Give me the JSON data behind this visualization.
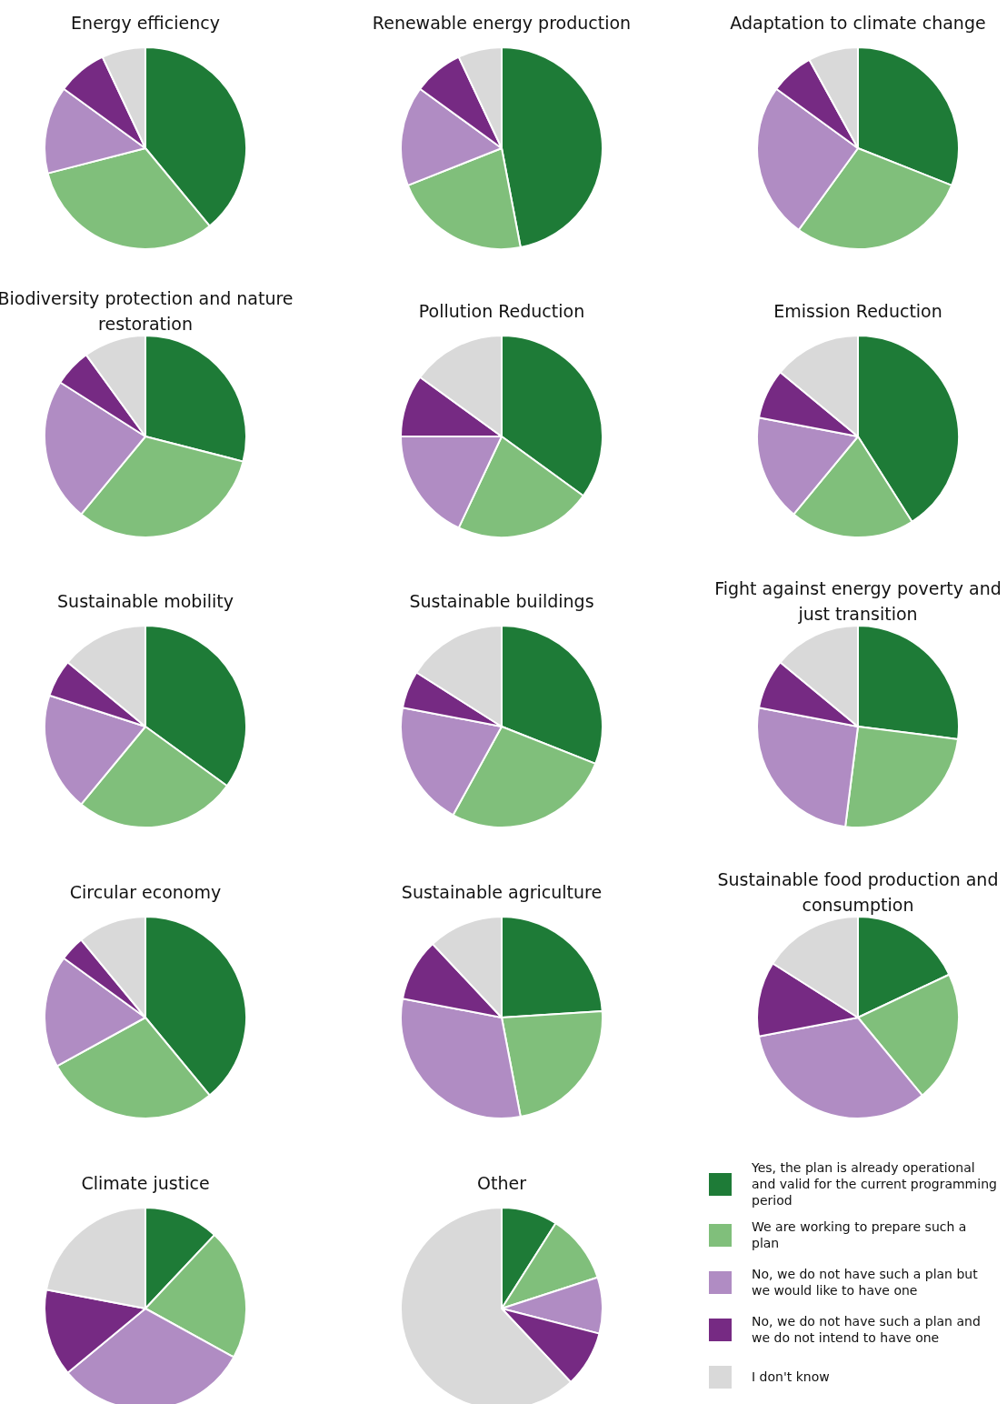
{
  "chart_data": [
    {
      "type": "pie",
      "title": "Energy efficiency",
      "categories": [
        null,
        null,
        null,
        null,
        null
      ],
      "values": [
        39,
        32,
        14,
        8,
        7
      ],
      "colors": [
        "#1e7b37",
        "#80bf7b",
        "#b08cc3",
        "#762a83",
        "#d9d9d9"
      ]
    },
    {
      "type": "pie",
      "title": "Renewable energy production",
      "categories": [
        null,
        null,
        null,
        null,
        null
      ],
      "values": [
        47,
        22,
        16,
        8,
        7
      ],
      "colors": [
        "#1e7b37",
        "#80bf7b",
        "#b08cc3",
        "#762a83",
        "#d9d9d9"
      ]
    },
    {
      "type": "pie",
      "title": "Adaptation to climate change",
      "categories": [
        null,
        null,
        null,
        null,
        null
      ],
      "values": [
        31,
        29,
        25,
        7,
        8
      ],
      "colors": [
        "#1e7b37",
        "#80bf7b",
        "#b08cc3",
        "#762a83",
        "#d9d9d9"
      ]
    },
    {
      "type": "pie",
      "title": "Biodiversity protection and nature restoration",
      "categories": [
        null,
        null,
        null,
        null,
        null
      ],
      "values": [
        29,
        32,
        23,
        6,
        10
      ],
      "colors": [
        "#1e7b37",
        "#80bf7b",
        "#b08cc3",
        "#762a83",
        "#d9d9d9"
      ]
    },
    {
      "type": "pie",
      "title": "Pollution Reduction",
      "categories": [
        null,
        null,
        null,
        null,
        null
      ],
      "values": [
        35,
        22,
        18,
        10,
        15
      ],
      "colors": [
        "#1e7b37",
        "#80bf7b",
        "#b08cc3",
        "#762a83",
        "#d9d9d9"
      ]
    },
    {
      "type": "pie",
      "title": "Emission Reduction",
      "categories": [
        null,
        null,
        null,
        null,
        null
      ],
      "values": [
        41,
        20,
        17,
        8,
        14
      ],
      "colors": [
        "#1e7b37",
        "#80bf7b",
        "#b08cc3",
        "#762a83",
        "#d9d9d9"
      ]
    },
    {
      "type": "pie",
      "title": "Sustainable mobility",
      "categories": [
        null,
        null,
        null,
        null,
        null
      ],
      "values": [
        35,
        26,
        19,
        6,
        14
      ],
      "colors": [
        "#1e7b37",
        "#80bf7b",
        "#b08cc3",
        "#762a83",
        "#d9d9d9"
      ]
    },
    {
      "type": "pie",
      "title": "Sustainable buildings",
      "categories": [
        null,
        null,
        null,
        null,
        null
      ],
      "values": [
        31,
        27,
        20,
        6,
        16
      ],
      "colors": [
        "#1e7b37",
        "#80bf7b",
        "#b08cc3",
        "#762a83",
        "#d9d9d9"
      ]
    },
    {
      "type": "pie",
      "title": "Fight against energy poverty and just transition",
      "categories": [
        null,
        null,
        null,
        null,
        null
      ],
      "values": [
        27,
        25,
        26,
        8,
        14
      ],
      "colors": [
        "#1e7b37",
        "#80bf7b",
        "#b08cc3",
        "#762a83",
        "#d9d9d9"
      ]
    },
    {
      "type": "pie",
      "title": "Circular economy",
      "categories": [
        null,
        null,
        null,
        null,
        null
      ],
      "values": [
        39,
        28,
        18,
        4,
        11
      ],
      "colors": [
        "#1e7b37",
        "#80bf7b",
        "#b08cc3",
        "#762a83",
        "#d9d9d9"
      ]
    },
    {
      "type": "pie",
      "title": "Sustainable agriculture",
      "categories": [
        null,
        null,
        null,
        null,
        null
      ],
      "values": [
        24,
        23,
        31,
        10,
        12
      ],
      "colors": [
        "#1e7b37",
        "#80bf7b",
        "#b08cc3",
        "#762a83",
        "#d9d9d9"
      ]
    },
    {
      "type": "pie",
      "title": "Sustainable food production and consumption",
      "categories": [
        null,
        null,
        null,
        null,
        null
      ],
      "values": [
        18,
        21,
        33,
        12,
        16
      ],
      "colors": [
        "#1e7b37",
        "#80bf7b",
        "#b08cc3",
        "#762a83",
        "#d9d9d9"
      ]
    },
    {
      "type": "pie",
      "title": "Climate justice",
      "categories": [
        null,
        null,
        null,
        null,
        null
      ],
      "values": [
        12,
        21,
        31,
        14,
        22
      ],
      "colors": [
        "#1e7b37",
        "#80bf7b",
        "#b08cc3",
        "#762a83",
        "#d9d9d9"
      ]
    },
    {
      "type": "pie",
      "title": "Other",
      "categories": [
        "Yes, the plan is already operational and valid for the current programming period",
        "We are working to prepare such a plan",
        "No, we do not have such a plan but we would like to have one",
        "No, we do not have such a plan and we do not intend to have one",
        "I don't know"
      ],
      "values": [
        9,
        11,
        9,
        9,
        62
      ],
      "colors": [
        "#1e7b37",
        "#80bf7b",
        "#b08cc3",
        "#762a83",
        "#d9d9d9"
      ],
      "legend": "right"
    }
  ]
}
